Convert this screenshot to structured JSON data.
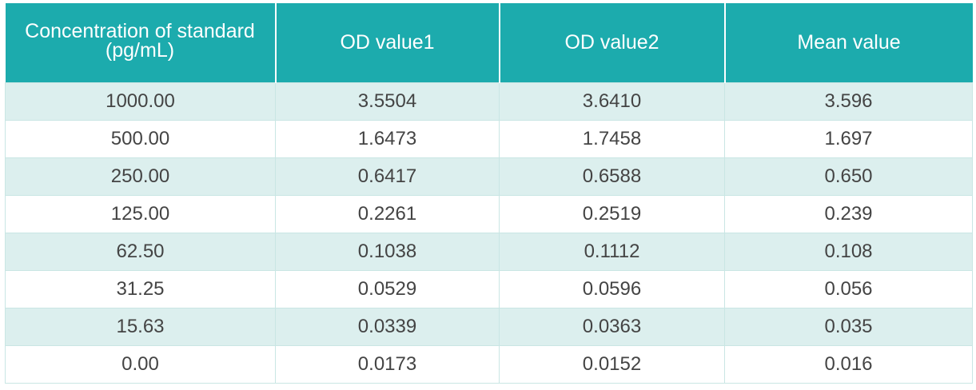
{
  "table": {
    "headers": {
      "concentration_line1": "Concentration of standard",
      "concentration_line2": "(pg/mL)",
      "od1": "OD value1",
      "od2": "OD value2",
      "mean": "Mean value"
    },
    "colors": {
      "header_bg": "#1cabad",
      "band_bg": "#dcefee",
      "border": "#c9e6e4"
    },
    "rows": [
      {
        "concentration": "1000.00",
        "od1": "3.5504",
        "od2": "3.6410",
        "mean": "3.596"
      },
      {
        "concentration": "500.00",
        "od1": "1.6473",
        "od2": "1.7458",
        "mean": "1.697"
      },
      {
        "concentration": "250.00",
        "od1": "0.6417",
        "od2": "0.6588",
        "mean": "0.650"
      },
      {
        "concentration": "125.00",
        "od1": "0.2261",
        "od2": "0.2519",
        "mean": "0.239"
      },
      {
        "concentration": "62.50",
        "od1": "0.1038",
        "od2": "0.1112",
        "mean": "0.108"
      },
      {
        "concentration": "31.25",
        "od1": "0.0529",
        "od2": "0.0596",
        "mean": "0.056"
      },
      {
        "concentration": "15.63",
        "od1": "0.0339",
        "od2": "0.0363",
        "mean": "0.035"
      },
      {
        "concentration": "0.00",
        "od1": "0.0173",
        "od2": "0.0152",
        "mean": "0.016"
      }
    ]
  }
}
